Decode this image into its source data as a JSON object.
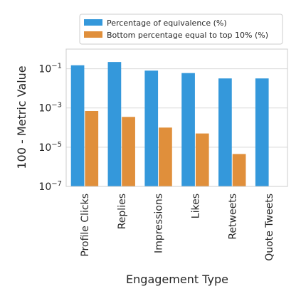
{
  "chart_data": {
    "type": "bar",
    "xlabel": "Engagement Type",
    "ylabel": "100 - Metric Value",
    "yscale": "log",
    "ylim": [
      1e-07,
      1
    ],
    "yticks": [
      {
        "value": 1e-07,
        "base": "10",
        "exp": "−7"
      },
      {
        "value": 1e-05,
        "base": "10",
        "exp": "−5"
      },
      {
        "value": 0.001,
        "base": "10",
        "exp": "−3"
      },
      {
        "value": 0.1,
        "base": "10",
        "exp": "−1"
      }
    ],
    "grid": true,
    "legend_position": "top",
    "categories": [
      "Profile Clicks",
      "Replies",
      "Impressions",
      "Likes",
      "Retweets",
      "Quote Tweets"
    ],
    "series": [
      {
        "name": "Percentage of equivalence (%)",
        "color": "#3498db",
        "values": [
          0.15,
          0.22,
          0.08,
          0.06,
          0.032,
          0.032
        ]
      },
      {
        "name": "Bottom percentage equal to top 10% (%)",
        "color": "#e08f3b",
        "values": [
          0.0007,
          0.00035,
          0.0001,
          5e-05,
          4.5e-06,
          null
        ]
      }
    ]
  }
}
